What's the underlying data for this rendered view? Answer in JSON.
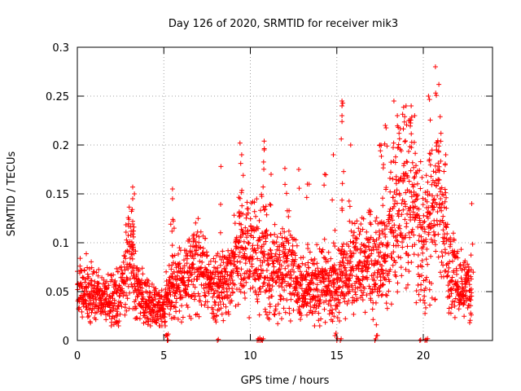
{
  "chart_data": {
    "type": "scatter",
    "title": "Day 126 of 2020, SRMTID for receiver mik3",
    "xlabel": "GPS time / hours",
    "ylabel": "SRMTID / TECUs",
    "xlim": [
      0,
      24
    ],
    "ylim": [
      0,
      0.3
    ],
    "x_ticks": [
      0,
      5,
      10,
      15,
      20
    ],
    "x_tick_labels": [
      "0",
      "5",
      "10",
      "15",
      "20"
    ],
    "y_ticks": [
      0,
      0.05,
      0.1,
      0.15,
      0.2,
      0.25,
      0.3
    ],
    "y_tick_labels": [
      "0",
      "0.05",
      "0.1",
      "0.15",
      "0.2",
      "0.25",
      "0.3"
    ],
    "grid": true,
    "marker": "+",
    "color": "#ff0000",
    "series": [
      {
        "name": "SRMTID",
        "trend": [
          [
            0.0,
            0.045
          ],
          [
            0.5,
            0.048
          ],
          [
            1.0,
            0.046
          ],
          [
            1.5,
            0.044
          ],
          [
            2.0,
            0.042
          ],
          [
            2.5,
            0.05
          ],
          [
            2.8,
            0.07
          ],
          [
            3.1,
            0.09
          ],
          [
            3.4,
            0.05
          ],
          [
            4.0,
            0.038
          ],
          [
            4.5,
            0.035
          ],
          [
            5.0,
            0.032
          ],
          [
            5.4,
            0.055
          ],
          [
            5.8,
            0.055
          ],
          [
            6.3,
            0.062
          ],
          [
            6.8,
            0.075
          ],
          [
            7.3,
            0.07
          ],
          [
            7.8,
            0.058
          ],
          [
            8.3,
            0.055
          ],
          [
            8.8,
            0.06
          ],
          [
            9.3,
            0.095
          ],
          [
            9.7,
            0.085
          ],
          [
            10.2,
            0.09
          ],
          [
            10.6,
            0.09
          ],
          [
            11.2,
            0.07
          ],
          [
            11.7,
            0.075
          ],
          [
            12.2,
            0.08
          ],
          [
            12.7,
            0.06
          ],
          [
            13.2,
            0.05
          ],
          [
            13.7,
            0.055
          ],
          [
            14.2,
            0.06
          ],
          [
            14.7,
            0.055
          ],
          [
            15.2,
            0.06
          ],
          [
            15.7,
            0.07
          ],
          [
            16.2,
            0.075
          ],
          [
            16.7,
            0.08
          ],
          [
            17.2,
            0.075
          ],
          [
            17.7,
            0.08
          ],
          [
            18.2,
            0.12
          ],
          [
            18.7,
            0.14
          ],
          [
            19.2,
            0.15
          ],
          [
            19.6,
            0.13
          ],
          [
            20.0,
            0.1
          ],
          [
            20.4,
            0.13
          ],
          [
            20.8,
            0.15
          ],
          [
            21.2,
            0.11
          ],
          [
            21.6,
            0.07
          ],
          [
            22.0,
            0.06
          ],
          [
            22.4,
            0.055
          ],
          [
            22.8,
            0.052
          ]
        ],
        "spikes": [
          [
            3.2,
            0.157
          ],
          [
            3.2,
            0.145
          ],
          [
            3.3,
            0.15
          ],
          [
            5.5,
            0.155
          ],
          [
            5.5,
            0.145
          ],
          [
            8.3,
            0.178
          ],
          [
            9.4,
            0.202
          ],
          [
            9.5,
            0.19
          ],
          [
            10.8,
            0.204
          ],
          [
            10.8,
            0.195
          ],
          [
            11.2,
            0.17
          ],
          [
            12.0,
            0.176
          ],
          [
            12.8,
            0.175
          ],
          [
            13.3,
            0.16
          ],
          [
            14.3,
            0.17
          ],
          [
            14.8,
            0.19
          ],
          [
            15.3,
            0.245
          ],
          [
            15.3,
            0.24
          ],
          [
            15.3,
            0.23
          ],
          [
            15.8,
            0.2
          ],
          [
            17.5,
            0.2
          ],
          [
            17.7,
            0.18
          ],
          [
            17.8,
            0.22
          ],
          [
            18.3,
            0.245
          ],
          [
            18.5,
            0.23
          ],
          [
            19.0,
            0.24
          ],
          [
            19.3,
            0.24
          ],
          [
            19.5,
            0.23
          ],
          [
            20.3,
            0.25
          ],
          [
            20.7,
            0.28
          ],
          [
            20.9,
            0.262
          ],
          [
            21.3,
            0.19
          ],
          [
            22.8,
            0.14
          ]
        ],
        "zeros": [
          [
            5.1,
            0.005
          ],
          [
            5.2,
            0.005
          ],
          [
            5.2,
            0.0
          ],
          [
            8.1,
            0.0
          ],
          [
            10.4,
            0.0
          ],
          [
            10.5,
            0.0
          ],
          [
            10.6,
            0.0
          ],
          [
            10.7,
            0.0
          ],
          [
            14.9,
            0.005
          ],
          [
            15.0,
            0.0
          ],
          [
            15.2,
            0.0
          ],
          [
            17.2,
            0.0
          ],
          [
            17.3,
            0.005
          ],
          [
            19.8,
            0.0
          ],
          [
            20.1,
            0.0
          ],
          [
            20.2,
            0.0
          ]
        ]
      }
    ]
  }
}
